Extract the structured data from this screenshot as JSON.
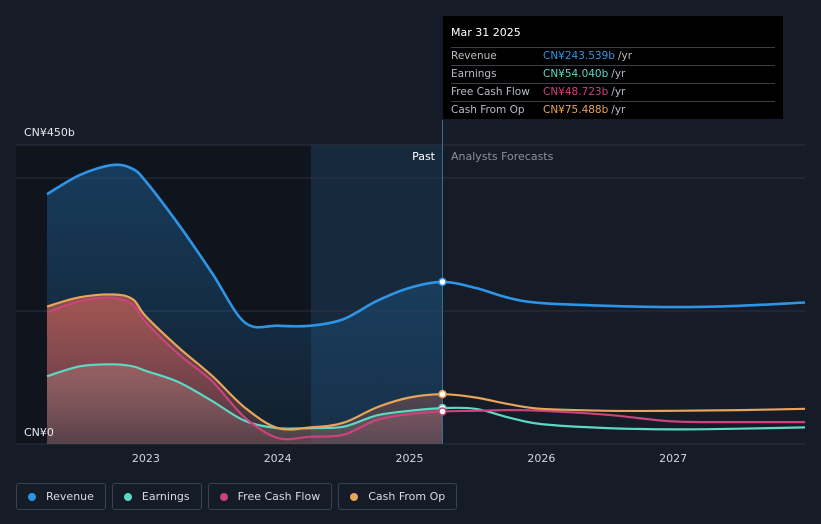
{
  "chart_data": {
    "type": "area",
    "y_unit": "CN¥",
    "y_tick_labels": [
      "CN¥450b",
      "CN¥0"
    ],
    "ylim": [
      0,
      450
    ],
    "xlim": [
      2022.25,
      2028.0
    ],
    "x_tick_labels": [
      "2023",
      "2024",
      "2025",
      "2026",
      "2027"
    ],
    "x_ticks": [
      2023,
      2024,
      2025,
      2026,
      2027
    ],
    "past_label": "Past",
    "forecast_label": "Analysts Forecasts",
    "divider_x": 2025.25,
    "grid": true,
    "series": [
      {
        "name": "Revenue",
        "color": "#2e95e6",
        "points": [
          [
            2022.25,
            376
          ],
          [
            2022.5,
            405
          ],
          [
            2022.75,
            420
          ],
          [
            2022.9,
            414
          ],
          [
            2023.0,
            395
          ],
          [
            2023.25,
            330
          ],
          [
            2023.5,
            258
          ],
          [
            2023.75,
            183
          ],
          [
            2024.0,
            178
          ],
          [
            2024.25,
            178
          ],
          [
            2024.5,
            188
          ],
          [
            2024.75,
            215
          ],
          [
            2025.0,
            235
          ],
          [
            2025.25,
            244
          ],
          [
            2025.5,
            235
          ],
          [
            2025.75,
            220
          ],
          [
            2026.0,
            212
          ],
          [
            2026.5,
            208
          ],
          [
            2027.0,
            206
          ],
          [
            2027.5,
            208
          ],
          [
            2028.0,
            213
          ]
        ]
      },
      {
        "name": "Earnings",
        "color": "#5ed8c4",
        "points": [
          [
            2022.25,
            102
          ],
          [
            2022.5,
            117
          ],
          [
            2022.75,
            120
          ],
          [
            2022.9,
            117
          ],
          [
            2023.0,
            110
          ],
          [
            2023.25,
            93
          ],
          [
            2023.5,
            65
          ],
          [
            2023.75,
            35
          ],
          [
            2024.0,
            24
          ],
          [
            2024.25,
            24
          ],
          [
            2024.5,
            26
          ],
          [
            2024.75,
            43
          ],
          [
            2025.0,
            50
          ],
          [
            2025.25,
            54
          ],
          [
            2025.5,
            53
          ],
          [
            2025.75,
            40
          ],
          [
            2026.0,
            30
          ],
          [
            2026.5,
            24
          ],
          [
            2027.0,
            22
          ],
          [
            2027.5,
            23
          ],
          [
            2028.0,
            25
          ]
        ]
      },
      {
        "name": "Free Cash Flow",
        "color": "#c9437d",
        "points": [
          [
            2022.25,
            198
          ],
          [
            2022.5,
            215
          ],
          [
            2022.75,
            220
          ],
          [
            2022.9,
            210
          ],
          [
            2023.0,
            183
          ],
          [
            2023.25,
            135
          ],
          [
            2023.5,
            95
          ],
          [
            2023.75,
            40
          ],
          [
            2024.0,
            9
          ],
          [
            2024.25,
            11
          ],
          [
            2024.5,
            14
          ],
          [
            2024.75,
            36
          ],
          [
            2025.0,
            45
          ],
          [
            2025.25,
            49
          ],
          [
            2025.5,
            50
          ],
          [
            2025.75,
            51
          ],
          [
            2026.0,
            50
          ],
          [
            2026.5,
            44
          ],
          [
            2027.0,
            34
          ],
          [
            2027.5,
            33
          ],
          [
            2028.0,
            33
          ]
        ]
      },
      {
        "name": "Cash From Op",
        "color": "#e8a45a",
        "points": [
          [
            2022.25,
            207
          ],
          [
            2022.5,
            221
          ],
          [
            2022.75,
            225
          ],
          [
            2022.9,
            218
          ],
          [
            2023.0,
            192
          ],
          [
            2023.25,
            145
          ],
          [
            2023.5,
            103
          ],
          [
            2023.75,
            55
          ],
          [
            2024.0,
            24
          ],
          [
            2024.25,
            25
          ],
          [
            2024.5,
            32
          ],
          [
            2024.75,
            55
          ],
          [
            2025.0,
            70
          ],
          [
            2025.25,
            75
          ],
          [
            2025.5,
            70
          ],
          [
            2025.75,
            60
          ],
          [
            2026.0,
            53
          ],
          [
            2026.5,
            50
          ],
          [
            2027.0,
            50
          ],
          [
            2027.5,
            51
          ],
          [
            2028.0,
            53
          ]
        ]
      }
    ],
    "highlight": {
      "x": 2025.25,
      "date": "Mar 31 2025",
      "rows": [
        {
          "label": "Revenue",
          "value": "CN¥243.539b",
          "unit": "/yr",
          "color": "#2e95e6"
        },
        {
          "label": "Earnings",
          "value": "CN¥54.040b",
          "unit": "/yr",
          "color": "#5ed8c4"
        },
        {
          "label": "Free Cash Flow",
          "value": "CN¥48.723b",
          "unit": "/yr",
          "color": "#c9437d"
        },
        {
          "label": "Cash From Op",
          "value": "CN¥75.488b",
          "unit": "/yr",
          "color": "#e8a45a"
        }
      ]
    }
  },
  "legend": [
    {
      "label": "Revenue",
      "color": "#2e95e6"
    },
    {
      "label": "Earnings",
      "color": "#5ed8c4"
    },
    {
      "label": "Free Cash Flow",
      "color": "#c9437d"
    },
    {
      "label": "Cash From Op",
      "color": "#e8a45a"
    }
  ]
}
